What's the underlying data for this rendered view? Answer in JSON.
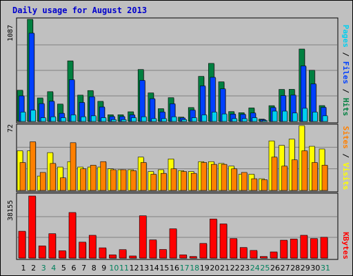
{
  "chart_data": [
    {
      "type": "bar",
      "title": "Daily usage for August 2013",
      "categories": [
        "1",
        "2",
        "3",
        "4",
        "5",
        "6",
        "7",
        "8",
        "9",
        "10",
        "11",
        "12",
        "13",
        "14",
        "15",
        "16",
        "17",
        "18",
        "19",
        "20",
        "21",
        "22",
        "23",
        "24",
        "25",
        "26",
        "27",
        "28",
        "29",
        "30",
        "31"
      ],
      "weekend_days": [
        "3",
        "4",
        "10",
        "11",
        "17",
        "18",
        "24",
        "25",
        "31"
      ],
      "ymax_label": "1087",
      "series": [
        {
          "name": "Hits",
          "color": "#008040",
          "values": [
            332,
            1087,
            250,
            317,
            185,
            645,
            280,
            329,
            214,
            71,
            71,
            103,
            553,
            304,
            136,
            253,
            46,
            148,
            480,
            618,
            422,
            105,
            93,
            144,
            25,
            168,
            341,
            342,
            771,
            545,
            169
          ]
        },
        {
          "name": "Files",
          "color": "#0040ff",
          "values": [
            272,
            940,
            190,
            215,
            87,
            444,
            202,
            263,
            154,
            52,
            52,
            70,
            437,
            242,
            101,
            188,
            37,
            121,
            378,
            470,
            347,
            78,
            76,
            90,
            19,
            148,
            275,
            280,
            590,
            400,
            150
          ]
        },
        {
          "name": "Pages",
          "color": "#00d0f0",
          "values": [
            100,
            120,
            40,
            50,
            40,
            70,
            50,
            60,
            40,
            20,
            20,
            40,
            50,
            30,
            30,
            50,
            20,
            40,
            70,
            100,
            80,
            30,
            30,
            40,
            10,
            110,
            110,
            90,
            140,
            100,
            60
          ]
        }
      ]
    },
    {
      "type": "bar",
      "ymax_label": "72",
      "series": [
        {
          "name": "Visits",
          "color": "#ffff00",
          "values": [
            44,
            44,
            16,
            42,
            26,
            32,
            26,
            26,
            26,
            24,
            23,
            23,
            37,
            21,
            23,
            35,
            22,
            21,
            32,
            32,
            30,
            27,
            18,
            18,
            13,
            55,
            50,
            57,
            72,
            49,
            46
          ]
        },
        {
          "name": "Sites",
          "color": "#ff8000",
          "values": [
            31,
            54,
            20,
            30,
            14,
            53,
            24,
            28,
            32,
            23,
            23,
            22,
            31,
            18,
            19,
            24,
            21,
            19,
            31,
            29,
            29,
            24,
            20,
            13,
            12,
            37,
            27,
            34,
            44,
            31,
            28
          ]
        }
      ]
    },
    {
      "type": "bar",
      "ymax_label": "38155",
      "series": [
        {
          "name": "KBytes",
          "color": "#ff0000",
          "values": [
            16500,
            38155,
            7500,
            15000,
            4500,
            28000,
            9800,
            14000,
            6300,
            2000,
            5200,
            1300,
            26000,
            11200,
            5300,
            18000,
            2000,
            1000,
            9000,
            24000,
            21000,
            12000,
            6500,
            4700,
            1000,
            3800,
            11000,
            11700,
            14000,
            12000,
            12800
          ]
        }
      ]
    }
  ],
  "right_labels": {
    "top": [
      {
        "text": "Pages",
        "color": "#00d0f0"
      },
      {
        "text": " / ",
        "color": "#000000"
      },
      {
        "text": "Files",
        "color": "#0040ff"
      },
      {
        "text": " / ",
        "color": "#000000"
      },
      {
        "text": "Hits",
        "color": "#008040"
      }
    ],
    "middle": [
      {
        "text": "Sites",
        "color": "#ff8000"
      },
      {
        "text": " / ",
        "color": "#000000"
      },
      {
        "text": "Visits",
        "color": "#ffff00"
      }
    ],
    "bottom": [
      {
        "text": "KBytes",
        "color": "#ff0000"
      }
    ]
  },
  "colors": {
    "weekday_label": "#000000",
    "weekend_label": "#00805c",
    "background": "#c0c0c0",
    "title": "#0000cc"
  }
}
